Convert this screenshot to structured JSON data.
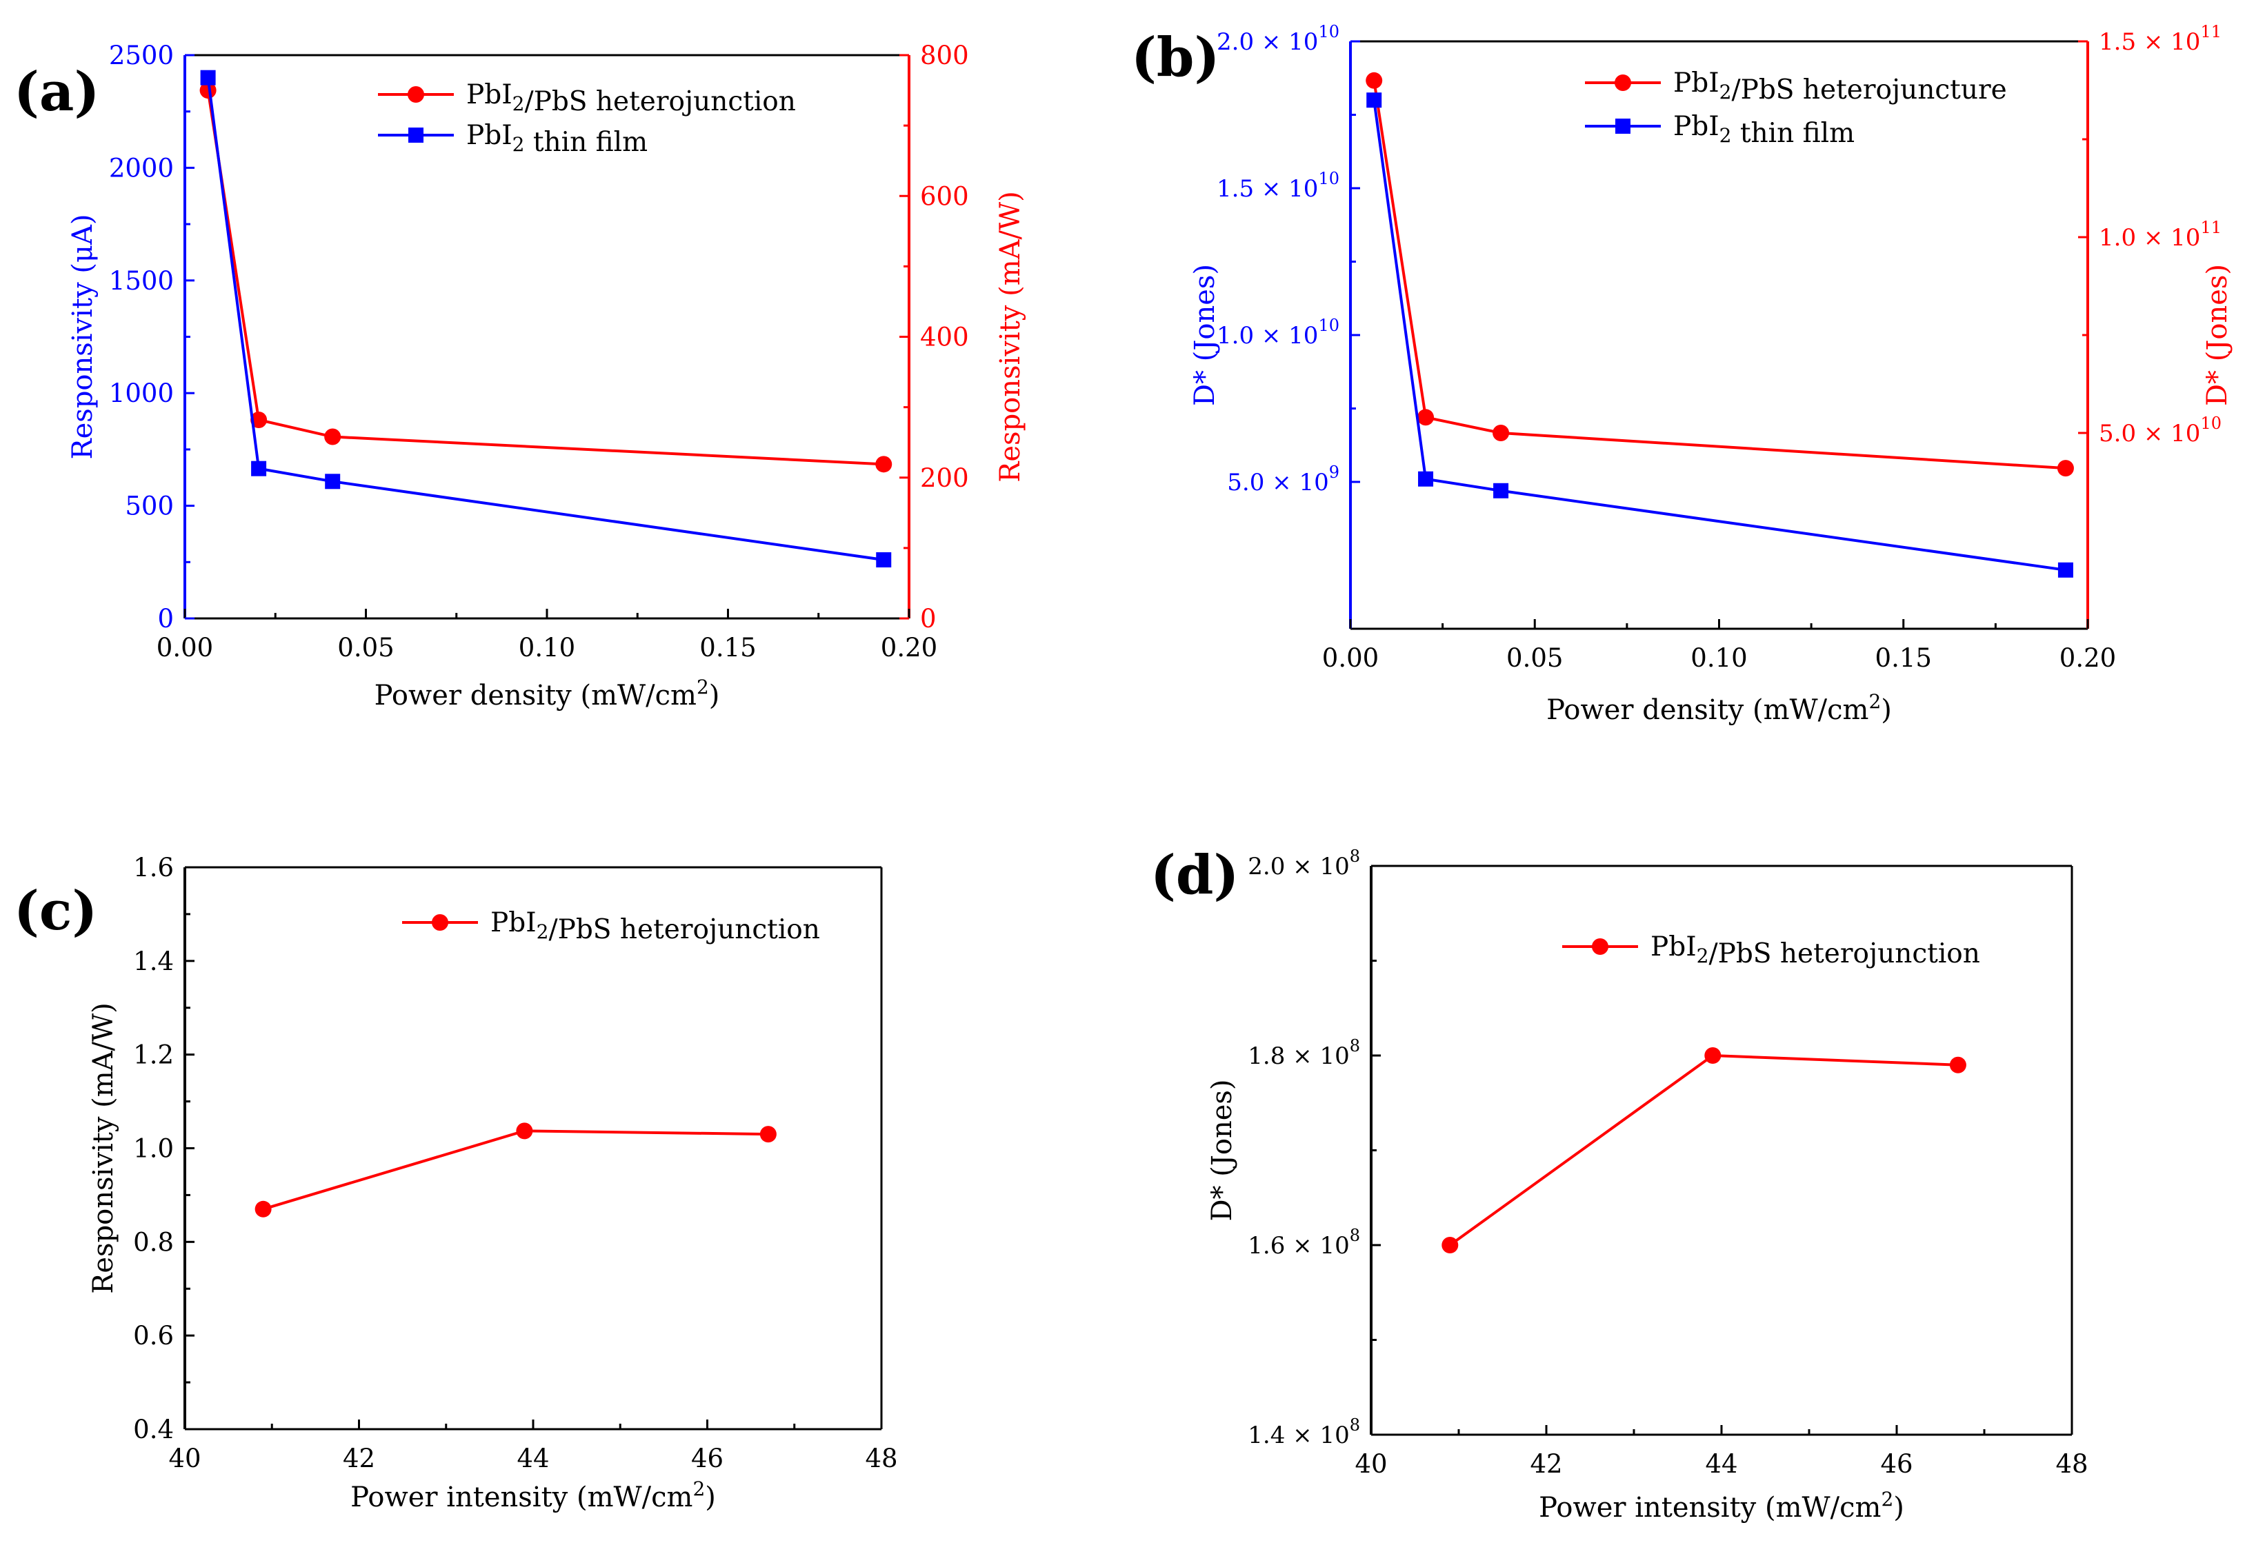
{
  "colors": {
    "red": "#ff0000",
    "blue": "#0000ff",
    "black": "#000000"
  },
  "chart_data": [
    {
      "type": "line",
      "panel_label": "(a)",
      "xlabel": "Power density (mW/cm",
      "xlabel_sup": "2",
      "xlabel_end": ")",
      "xlim": [
        0,
        0.2
      ],
      "xticks": [
        0.0,
        0.05,
        0.1,
        0.15,
        0.2
      ],
      "xtick_labels": [
        "0.00",
        "0.05",
        "0.10",
        "0.15",
        "0.20"
      ],
      "left_axis": {
        "label": "Responsivity (μA)",
        "color": "#0000ff",
        "ylim": [
          0,
          2500
        ],
        "ticks": [
          0,
          500,
          1000,
          1500,
          2000,
          2500
        ],
        "tick_labels": [
          "0",
          "500",
          "1000",
          "1500",
          "2000",
          "2500"
        ]
      },
      "right_axis": {
        "label": "Responsivity (mA/W)",
        "color": "#ff0000",
        "ylim": [
          0,
          800
        ],
        "ticks": [
          0,
          200,
          400,
          600,
          800
        ],
        "tick_labels": [
          "0",
          "200",
          "400",
          "600",
          "800"
        ]
      },
      "series": [
        {
          "name": "PbI₂/PbS heterojunction",
          "axis": "right",
          "color": "#ff0000",
          "marker": "circle",
          "x": [
            0.0064,
            0.0204,
            0.0408,
            0.193
          ],
          "values": [
            750,
            282,
            258,
            219
          ]
        },
        {
          "name": "PbI₂ thin film",
          "axis": "left",
          "color": "#0000ff",
          "marker": "square",
          "x": [
            0.0064,
            0.0204,
            0.0408,
            0.193
          ],
          "values": [
            2400,
            665,
            608,
            260
          ]
        }
      ]
    },
    {
      "type": "line",
      "panel_label": "(b)",
      "xlabel": "Power density (mW/cm",
      "xlabel_sup": "2",
      "xlabel_end": ")",
      "xlim": [
        0,
        0.2
      ],
      "xticks": [
        0.0,
        0.05,
        0.1,
        0.15,
        0.2
      ],
      "xtick_labels": [
        "0.00",
        "0.05",
        "0.10",
        "0.15",
        "0.20"
      ],
      "left_axis": {
        "label": "D* (Jones)",
        "color": "#0000ff",
        "ylim": [
          0,
          20000000000.0
        ],
        "ticks": [
          5000000000.0,
          10000000000.0,
          15000000000.0,
          20000000000.0
        ],
        "tick_mant": [
          "5.0",
          "1.0",
          "1.5",
          "2.0"
        ],
        "tick_exp": [
          "9",
          "10",
          "10",
          "10"
        ]
      },
      "right_axis": {
        "label": "D* (Jones)",
        "color": "#ff0000",
        "ylim": [
          0,
          150000000000.0
        ],
        "ticks": [
          50000000000.0,
          100000000000.0,
          150000000000.0
        ],
        "tick_mant": [
          "5.0",
          "1.0",
          "1.5"
        ],
        "tick_exp": [
          "10",
          "11",
          "11"
        ]
      },
      "series": [
        {
          "name": "PbI₂/PbS heterojuncture",
          "axis": "right",
          "color": "#ff0000",
          "marker": "circle",
          "x": [
            0.0064,
            0.0204,
            0.0408,
            0.194
          ],
          "values": [
            140000000000.0,
            54000000000.0,
            50000000000.0,
            41000000000.0
          ]
        },
        {
          "name": "PbI₂ thin film",
          "axis": "left",
          "color": "#0000ff",
          "marker": "square",
          "x": [
            0.0064,
            0.0204,
            0.0408,
            0.194
          ],
          "values": [
            18000000000.0,
            5100000000.0,
            4700000000.0,
            2000000000.0
          ]
        }
      ]
    },
    {
      "type": "line",
      "panel_label": "(c)",
      "xlabel": "Power intensity (mW/cm",
      "xlabel_sup": "2",
      "xlabel_end": ")",
      "xlim": [
        40,
        48
      ],
      "xticks": [
        40,
        42,
        44,
        46,
        48
      ],
      "xtick_labels": [
        "40",
        "42",
        "44",
        "46",
        "48"
      ],
      "left_axis": {
        "label": "Responsivity (mA/W)",
        "color": "#000000",
        "ylim": [
          0.4,
          1.6
        ],
        "ticks": [
          0.4,
          0.6,
          0.8,
          1.0,
          1.2,
          1.4,
          1.6
        ],
        "tick_labels": [
          "0.4",
          "0.6",
          "0.8",
          "1.0",
          "1.2",
          "1.4",
          "1.6"
        ]
      },
      "series": [
        {
          "name": "PbI₂/PbS heterojunction",
          "axis": "left",
          "color": "#ff0000",
          "marker": "circle",
          "x": [
            40.9,
            43.9,
            46.7
          ],
          "values": [
            0.87,
            1.037,
            1.03
          ]
        }
      ]
    },
    {
      "type": "line",
      "panel_label": "(d)",
      "xlabel": "Power intensity (mW/cm",
      "xlabel_sup": "2",
      "xlabel_end": ")",
      "xlim": [
        40,
        48
      ],
      "xticks": [
        40,
        42,
        44,
        46,
        48
      ],
      "xtick_labels": [
        "40",
        "42",
        "44",
        "46",
        "48"
      ],
      "left_axis": {
        "label": "D* (Jones)",
        "color": "#000000",
        "ylim": [
          140000000.0,
          200000000.0
        ],
        "ticks": [
          140000000.0,
          160000000.0,
          180000000.0,
          200000000.0
        ],
        "tick_mant": [
          "1.4",
          "1.6",
          "1.8",
          "2.0"
        ],
        "tick_exp": [
          "8",
          "8",
          "8",
          "8"
        ]
      },
      "series": [
        {
          "name": "PbI₂/PbS heterojunction",
          "axis": "left",
          "color": "#ff0000",
          "marker": "circle",
          "x": [
            40.9,
            43.9,
            46.7
          ],
          "values": [
            160000000.0,
            180000000.0,
            179000000.0
          ]
        }
      ]
    }
  ]
}
